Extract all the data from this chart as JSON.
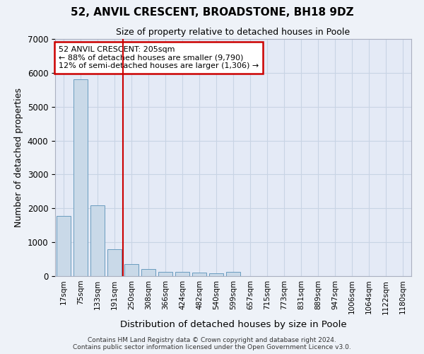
{
  "title": "52, ANVIL CRESCENT, BROADSTONE, BH18 9DZ",
  "subtitle": "Size of property relative to detached houses in Poole",
  "xlabel": "Distribution of detached houses by size in Poole",
  "ylabel": "Number of detached properties",
  "footer_line1": "Contains HM Land Registry data © Crown copyright and database right 2024.",
  "footer_line2": "Contains public sector information licensed under the Open Government Licence v3.0.",
  "bar_color": "#c9d9e8",
  "bar_edge_color": "#6a9cbf",
  "grid_color": "#c8d4e4",
  "annotation_box_color": "#cc0000",
  "vline_color": "#cc0000",
  "categories": [
    "17sqm",
    "75sqm",
    "133sqm",
    "191sqm",
    "250sqm",
    "308sqm",
    "366sqm",
    "424sqm",
    "482sqm",
    "540sqm",
    "599sqm",
    "657sqm",
    "715sqm",
    "773sqm",
    "831sqm",
    "889sqm",
    "947sqm",
    "1006sqm",
    "1064sqm",
    "1122sqm",
    "1180sqm"
  ],
  "values": [
    1780,
    5800,
    2080,
    800,
    350,
    200,
    130,
    120,
    100,
    80,
    120,
    0,
    0,
    0,
    0,
    0,
    0,
    0,
    0,
    0,
    0
  ],
  "vline_position": 3.5,
  "annotation_line1": "52 ANVIL CRESCENT: 205sqm",
  "annotation_line2": "← 88% of detached houses are smaller (9,790)",
  "annotation_line3": "12% of semi-detached houses are larger (1,306) →",
  "ylim": [
    0,
    7000
  ],
  "yticks": [
    0,
    1000,
    2000,
    3000,
    4000,
    5000,
    6000,
    7000
  ],
  "background_color": "#eef2f8",
  "plot_background": "#e4eaf6"
}
